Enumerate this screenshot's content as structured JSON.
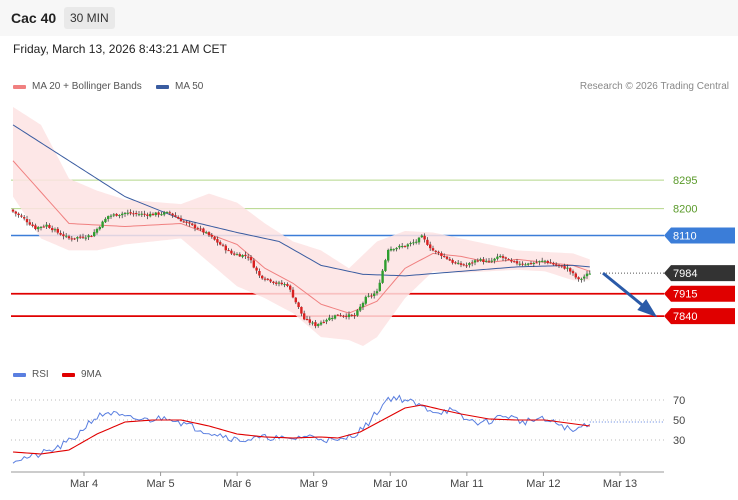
{
  "header": {
    "title": "Cac 40",
    "timeframe": "30 MIN"
  },
  "date_text": "Friday, March 13, 2026 8:43:21 AM CET",
  "legend": {
    "ma20_label": "MA 20 + Bollinger Bands",
    "ma50_label": "MA 50",
    "rsi_label": "RSI",
    "rsi_ma_label": "9MA"
  },
  "credit": "Research © 2026 Trading Central",
  "colors": {
    "ma20": "#f08080",
    "ma50": "#3a5ca0",
    "band_fill": "#fde3e3",
    "bull": "#2e9e2e",
    "bear": "#d92020",
    "resistance_line": "#b4d68a",
    "pivot_line": "#3b7dd8",
    "support_line": "#e00000",
    "current_tag": "#333333",
    "arrow": "#2a5aa8",
    "rsi": "#5a7fe0",
    "rsi_ma": "#e00000"
  },
  "chart_data": {
    "type": "candlestick",
    "x_ticks": [
      "Mar 4",
      "Mar 5",
      "Mar 6",
      "Mar 9",
      "Mar 10",
      "Mar 11",
      "Mar 12",
      "Mar 13"
    ],
    "ylim": [
      7700,
      8580
    ],
    "levels": [
      {
        "value": 8295,
        "label": "8295",
        "kind": "resistance"
      },
      {
        "value": 8200,
        "label": "8200",
        "kind": "resistance"
      },
      {
        "value": 8110,
        "label": "8110",
        "kind": "pivot"
      },
      {
        "value": 7984,
        "label": "7984",
        "kind": "current"
      },
      {
        "value": 7915,
        "label": "7915",
        "kind": "support"
      },
      {
        "value": 7840,
        "label": "7840",
        "kind": "support"
      }
    ],
    "candle_anchors": [
      [
        0,
        8190
      ],
      [
        4,
        8165
      ],
      [
        8,
        8135
      ],
      [
        12,
        8145
      ],
      [
        16,
        8120
      ],
      [
        20,
        8100
      ],
      [
        24,
        8105
      ],
      [
        28,
        8110
      ],
      [
        34,
        8175
      ],
      [
        40,
        8185
      ],
      [
        48,
        8180
      ],
      [
        56,
        8185
      ],
      [
        62,
        8150
      ],
      [
        66,
        8135
      ],
      [
        70,
        8110
      ],
      [
        74,
        8080
      ],
      [
        78,
        8050
      ],
      [
        84,
        8040
      ],
      [
        88,
        7975
      ],
      [
        92,
        7960
      ],
      [
        94,
        7950
      ],
      [
        98,
        7945
      ],
      [
        104,
        7830
      ],
      [
        108,
        7810
      ],
      [
        112,
        7830
      ],
      [
        116,
        7845
      ],
      [
        122,
        7840
      ],
      [
        126,
        7900
      ],
      [
        130,
        7920
      ],
      [
        134,
        8065
      ],
      [
        140,
        8075
      ],
      [
        144,
        8090
      ],
      [
        146,
        8105
      ],
      [
        150,
        8060
      ],
      [
        154,
        8040
      ],
      [
        158,
        8015
      ],
      [
        162,
        8010
      ],
      [
        166,
        8030
      ],
      [
        170,
        8020
      ],
      [
        174,
        8040
      ],
      [
        178,
        8020
      ],
      [
        184,
        8015
      ],
      [
        190,
        8025
      ],
      [
        194,
        8010
      ],
      [
        198,
        8000
      ],
      [
        202,
        7960
      ],
      [
        206,
        7985
      ]
    ],
    "ma20_anchors": [
      [
        0,
        8360
      ],
      [
        20,
        8150
      ],
      [
        40,
        8140
      ],
      [
        60,
        8150
      ],
      [
        80,
        8080
      ],
      [
        90,
        8000
      ],
      [
        100,
        7950
      ],
      [
        110,
        7880
      ],
      [
        120,
        7850
      ],
      [
        130,
        7890
      ],
      [
        140,
        8000
      ],
      [
        150,
        8050
      ],
      [
        160,
        8040
      ],
      [
        170,
        8020
      ],
      [
        180,
        8030
      ],
      [
        190,
        8020
      ],
      [
        200,
        8010
      ],
      [
        206,
        7990
      ]
    ],
    "ma50_anchors": [
      [
        0,
        8480
      ],
      [
        20,
        8360
      ],
      [
        40,
        8240
      ],
      [
        60,
        8165
      ],
      [
        80,
        8120
      ],
      [
        95,
        8090
      ],
      [
        110,
        8010
      ],
      [
        125,
        7980
      ],
      [
        140,
        7975
      ],
      [
        160,
        7990
      ],
      [
        180,
        8005
      ],
      [
        200,
        8010
      ],
      [
        206,
        8005
      ]
    ],
    "band_upper": [
      [
        0,
        8540
      ],
      [
        10,
        8480
      ],
      [
        20,
        8300
      ],
      [
        30,
        8260
      ],
      [
        40,
        8230
      ],
      [
        60,
        8215
      ],
      [
        70,
        8250
      ],
      [
        80,
        8220
      ],
      [
        90,
        8150
      ],
      [
        100,
        8090
      ],
      [
        110,
        8060
      ],
      [
        120,
        8000
      ],
      [
        130,
        8090
      ],
      [
        140,
        8125
      ],
      [
        150,
        8120
      ],
      [
        160,
        8100
      ],
      [
        170,
        8080
      ],
      [
        180,
        8060
      ],
      [
        190,
        8055
      ],
      [
        200,
        8050
      ],
      [
        206,
        8030
      ]
    ],
    "band_lower": [
      [
        0,
        8240
      ],
      [
        10,
        8100
      ],
      [
        20,
        8060
      ],
      [
        30,
        8060
      ],
      [
        40,
        8080
      ],
      [
        60,
        8100
      ],
      [
        70,
        8020
      ],
      [
        80,
        7940
      ],
      [
        90,
        7900
      ],
      [
        100,
        7850
      ],
      [
        110,
        7770
      ],
      [
        120,
        7760
      ],
      [
        125,
        7740
      ],
      [
        130,
        7770
      ],
      [
        140,
        7900
      ],
      [
        150,
        7990
      ],
      [
        160,
        7985
      ],
      [
        170,
        7990
      ],
      [
        180,
        7995
      ],
      [
        190,
        7990
      ],
      [
        200,
        7960
      ],
      [
        206,
        7960
      ]
    ],
    "forecast": {
      "from": 7984,
      "to": 7840
    },
    "rsi": {
      "ylim": [
        5,
        85
      ],
      "levels": [
        70,
        50,
        30
      ],
      "rsi_anchors": [
        [
          0,
          10
        ],
        [
          8,
          14
        ],
        [
          16,
          22
        ],
        [
          22,
          32
        ],
        [
          28,
          50
        ],
        [
          34,
          58
        ],
        [
          40,
          52
        ],
        [
          48,
          50
        ],
        [
          56,
          53
        ],
        [
          62,
          45
        ],
        [
          70,
          38
        ],
        [
          76,
          34
        ],
        [
          80,
          30
        ],
        [
          86,
          31
        ],
        [
          92,
          33
        ],
        [
          98,
          30
        ],
        [
          104,
          34
        ],
        [
          110,
          32
        ],
        [
          116,
          28
        ],
        [
          122,
          36
        ],
        [
          126,
          44
        ],
        [
          130,
          58
        ],
        [
          134,
          72
        ],
        [
          138,
          72
        ],
        [
          142,
          68
        ],
        [
          146,
          63
        ],
        [
          152,
          58
        ],
        [
          156,
          60
        ],
        [
          162,
          50
        ],
        [
          168,
          47
        ],
        [
          176,
          55
        ],
        [
          182,
          48
        ],
        [
          188,
          51
        ],
        [
          192,
          48
        ],
        [
          196,
          45
        ],
        [
          200,
          38
        ],
        [
          204,
          45
        ],
        [
          206,
          48
        ]
      ],
      "ma_anchors": [
        [
          0,
          18
        ],
        [
          10,
          16
        ],
        [
          20,
          20
        ],
        [
          30,
          36
        ],
        [
          40,
          48
        ],
        [
          50,
          50
        ],
        [
          60,
          50
        ],
        [
          70,
          44
        ],
        [
          80,
          36
        ],
        [
          90,
          33
        ],
        [
          100,
          32
        ],
        [
          110,
          33
        ],
        [
          116,
          32
        ],
        [
          124,
          38
        ],
        [
          132,
          50
        ],
        [
          140,
          62
        ],
        [
          146,
          65
        ],
        [
          152,
          61
        ],
        [
          160,
          56
        ],
        [
          170,
          51
        ],
        [
          180,
          50
        ],
        [
          190,
          50
        ],
        [
          198,
          47
        ],
        [
          206,
          44
        ]
      ]
    }
  }
}
